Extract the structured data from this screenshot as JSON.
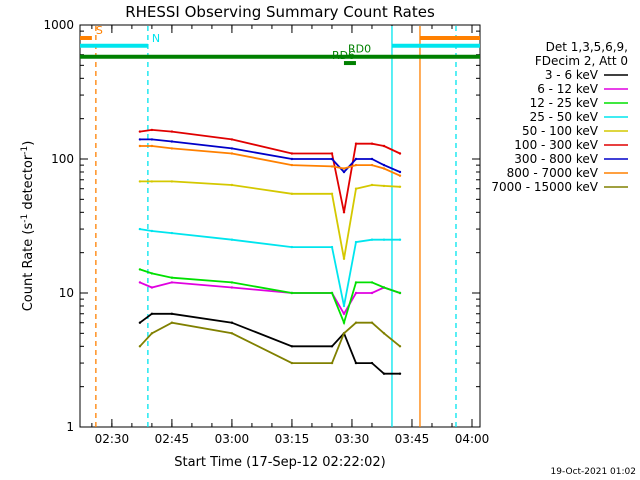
{
  "chart_data": {
    "type": "line",
    "title": "RHESSI Observing Summary Count Rates",
    "xlabel": "Start Time (17-Sep-12 02:22:02)",
    "ylabel_parts": [
      "Count Rate (s",
      "-1",
      " detector",
      "-1",
      ")"
    ],
    "yscale": "log",
    "ylim": [
      1,
      1000
    ],
    "xlim": [
      "02:22:02",
      "04:02:00"
    ],
    "x_ticks": [
      "02:30",
      "02:45",
      "03:00",
      "03:15",
      "03:30",
      "03:45",
      "04:00"
    ],
    "y_ticks": [
      "1",
      "10",
      "100",
      "1000"
    ],
    "legend_header": [
      "Det 1,3,5,6,9,",
      "FDecim 2, Att 0"
    ],
    "legend_position": "right",
    "footer_date": "19-Oct-2021 01:02",
    "series": [
      {
        "name": "3 - 6 keV",
        "color": "#000000",
        "points": [
          [
            "02:37",
            6
          ],
          [
            "02:40",
            7
          ],
          [
            "02:45",
            7
          ],
          [
            "03:00",
            6
          ],
          [
            "03:15",
            4
          ],
          [
            "03:25",
            4
          ],
          [
            "03:28",
            5
          ],
          [
            "03:31",
            3
          ],
          [
            "03:35",
            3
          ],
          [
            "03:38",
            2.5
          ],
          [
            "03:42",
            2.5
          ]
        ]
      },
      {
        "name": "6 - 12 keV",
        "color": "#e000e0",
        "points": [
          [
            "02:37",
            12
          ],
          [
            "02:40",
            11
          ],
          [
            "02:45",
            12
          ],
          [
            "03:00",
            11
          ],
          [
            "03:15",
            10
          ],
          [
            "03:25",
            10
          ],
          [
            "03:28",
            7
          ],
          [
            "03:31",
            10
          ],
          [
            "03:35",
            10
          ],
          [
            "03:38",
            11
          ],
          [
            "03:42",
            10
          ]
        ]
      },
      {
        "name": "12 - 25 keV",
        "color": "#00e000",
        "points": [
          [
            "02:37",
            15
          ],
          [
            "02:40",
            14
          ],
          [
            "02:45",
            13
          ],
          [
            "03:00",
            12
          ],
          [
            "03:15",
            10
          ],
          [
            "03:25",
            10
          ],
          [
            "03:28",
            6
          ],
          [
            "03:31",
            12
          ],
          [
            "03:35",
            12
          ],
          [
            "03:38",
            11
          ],
          [
            "03:42",
            10
          ]
        ]
      },
      {
        "name": "25 - 50 keV",
        "color": "#00e5ee",
        "points": [
          [
            "02:37",
            30
          ],
          [
            "02:40",
            29
          ],
          [
            "02:45",
            28
          ],
          [
            "03:00",
            25
          ],
          [
            "03:15",
            22
          ],
          [
            "03:25",
            22
          ],
          [
            "03:28",
            8
          ],
          [
            "03:31",
            24
          ],
          [
            "03:35",
            25
          ],
          [
            "03:38",
            25
          ],
          [
            "03:42",
            25
          ]
        ]
      },
      {
        "name": "50 - 100 keV",
        "color": "#d4c800",
        "points": [
          [
            "02:37",
            68
          ],
          [
            "02:40",
            68
          ],
          [
            "02:45",
            68
          ],
          [
            "03:00",
            64
          ],
          [
            "03:15",
            55
          ],
          [
            "03:25",
            55
          ],
          [
            "03:28",
            18
          ],
          [
            "03:31",
            60
          ],
          [
            "03:35",
            64
          ],
          [
            "03:38",
            63
          ],
          [
            "03:42",
            62
          ]
        ]
      },
      {
        "name": "100 - 300 keV",
        "color": "#e00000",
        "points": [
          [
            "02:37",
            160
          ],
          [
            "02:40",
            165
          ],
          [
            "02:45",
            160
          ],
          [
            "03:00",
            140
          ],
          [
            "03:15",
            110
          ],
          [
            "03:25",
            110
          ],
          [
            "03:28",
            40
          ],
          [
            "03:31",
            130
          ],
          [
            "03:35",
            130
          ],
          [
            "03:38",
            125
          ],
          [
            "03:42",
            110
          ]
        ]
      },
      {
        "name": "300 - 800 keV",
        "color": "#0000c8",
        "points": [
          [
            "02:37",
            140
          ],
          [
            "02:40",
            140
          ],
          [
            "02:45",
            135
          ],
          [
            "03:00",
            120
          ],
          [
            "03:15",
            100
          ],
          [
            "03:25",
            100
          ],
          [
            "03:28",
            80
          ],
          [
            "03:31",
            100
          ],
          [
            "03:35",
            100
          ],
          [
            "03:38",
            90
          ],
          [
            "03:42",
            80
          ]
        ]
      },
      {
        "name": "800 - 7000 keV",
        "color": "#ff8000",
        "points": [
          [
            "02:37",
            125
          ],
          [
            "02:40",
            125
          ],
          [
            "02:45",
            120
          ],
          [
            "03:00",
            110
          ],
          [
            "03:15",
            90
          ],
          [
            "03:25",
            88
          ],
          [
            "03:28",
            85
          ],
          [
            "03:31",
            90
          ],
          [
            "03:35",
            90
          ],
          [
            "03:38",
            85
          ],
          [
            "03:42",
            75
          ]
        ]
      },
      {
        "name": "7000 - 15000 keV",
        "color": "#808000",
        "points": [
          [
            "02:37",
            4
          ],
          [
            "02:40",
            5
          ],
          [
            "02:45",
            6
          ],
          [
            "03:00",
            5
          ],
          [
            "03:15",
            3
          ],
          [
            "03:25",
            3
          ],
          [
            "03:28",
            5
          ],
          [
            "03:31",
            6
          ],
          [
            "03:35",
            6
          ],
          [
            "03:38",
            5
          ],
          [
            "03:42",
            4
          ]
        ]
      }
    ],
    "annotations": [
      {
        "label": "S",
        "color": "#ff8000",
        "line_y": 800
      },
      {
        "label": "N",
        "color": "#00e5ee",
        "line_y": 700
      },
      {
        "label": "RD0",
        "color": "#008000",
        "line_y": 580
      },
      {
        "label": "RD6",
        "color": "#008000",
        "line_y": 520
      }
    ],
    "vertical_lines": [
      {
        "time": "02:26",
        "color": "#ff8000",
        "dashed": true
      },
      {
        "time": "02:39",
        "color": "#00e5ee",
        "dashed": true
      },
      {
        "time": "03:40",
        "color": "#00e5ee",
        "dashed": false
      },
      {
        "time": "03:47",
        "color": "#ff8000",
        "dashed": false
      },
      {
        "time": "03:56",
        "color": "#00e5ee",
        "dashed": true
      }
    ]
  }
}
